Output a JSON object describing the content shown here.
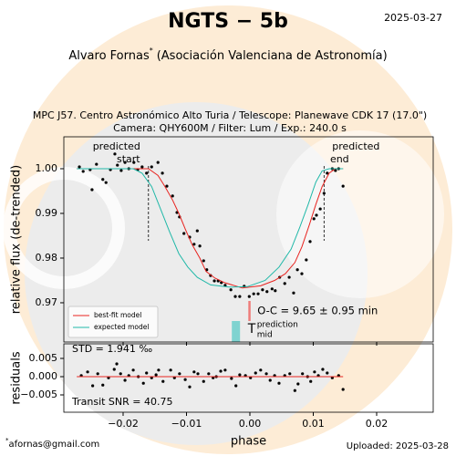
{
  "page": {
    "title": "NGTS − 5b",
    "date": "2025-03-27",
    "author": "Alvaro Fornas",
    "author_mark": "*",
    "affiliation": "(Asociación Valenciana de Astronomía)",
    "email": "afornas@gmail.com",
    "uploaded": "Uploaded: 2025-03-28"
  },
  "chart_data": [
    {
      "type": "scatter",
      "subtitle": [
        "MPC J57. Centro Astronómico Alto Turia / Telescope: Planewave CDK 17 (17.0\")",
        "Camera: QHY600M / Filter: Lum / Exp.: 240.0 s"
      ],
      "ylabel": "relative flux (de-trended)",
      "xlim": [
        -0.02935,
        0.02892
      ],
      "ylim": [
        0.96122,
        1.00714
      ],
      "yticks": [
        0.97,
        0.98,
        0.99,
        {
          "value": 1,
          "label": "1.00"
        }
      ],
      "legend": "lower left",
      "series": [
        {
          "mode": "markers",
          "color": "#000000",
          "x": [
            -0.0269,
            -0.0263,
            -0.0252,
            -0.0249,
            -0.0242,
            -0.0232,
            -0.0227,
            -0.022,
            -0.0213,
            -0.0209,
            -0.0203,
            -0.0197,
            -0.0191,
            -0.0183,
            -0.0177,
            -0.017,
            -0.0163,
            -0.0155,
            -0.0145,
            -0.0138,
            -0.0131,
            -0.0122,
            -0.0115,
            -0.0111,
            -0.0104,
            -0.0095,
            -0.0088,
            -0.0083,
            -0.0079,
            -0.0073,
            -0.0068,
            -0.0062,
            -0.0056,
            -0.005,
            -0.0045,
            -0.0039,
            -0.003,
            -0.0023,
            -0.0016,
            -0.0009,
            -0.0001,
            0.0006,
            0.0013,
            0.002,
            0.0027,
            0.0035,
            0.004,
            0.0047,
            0.0055,
            0.0062,
            0.0069,
            0.0075,
            0.0082,
            0.0089,
            0.0095,
            0.0101,
            0.0105,
            0.0111,
            0.0117,
            0.0122,
            0.013,
            0.0135,
            0.014,
            0.0147
          ],
          "values": [
            1.0004,
            0.9994,
            0.9998,
            0.9953,
            1.001,
            0.9976,
            0.9969,
            0.9998,
            1.0033,
            1.0008,
            0.9996,
            1.0014,
            1.0,
            1.0014,
            0.9998,
            1.0004,
            0.999,
            1.0004,
            1.0014,
            0.999,
            0.9961,
            0.9939,
            0.9902,
            0.9892,
            0.9855,
            0.9847,
            0.9831,
            0.9861,
            0.9827,
            0.9794,
            0.9774,
            0.9761,
            0.9749,
            0.9749,
            0.9745,
            0.9739,
            0.9729,
            0.9714,
            0.9714,
            0.9737,
            0.9714,
            0.972,
            0.972,
            0.9729,
            0.9725,
            0.9731,
            0.9727,
            0.9757,
            0.9743,
            0.9757,
            0.9722,
            0.9774,
            0.9765,
            0.9796,
            0.9837,
            0.9888,
            0.9896,
            0.991,
            0.9945,
            0.999,
            1.0,
            0.9996,
            1.0,
            0.9961
          ]
        },
        {
          "name": "best-fit model",
          "mode": "line",
          "color": "#e8231f",
          "x": [
            -0.0273,
            -0.016,
            -0.0145,
            -0.0134,
            -0.0122,
            -0.0112,
            -0.0102,
            -0.0091,
            -0.0079,
            -0.0069,
            -0.0055,
            -0.004,
            -0.0012,
            0.0017,
            0.0039,
            0.0056,
            0.0071,
            0.0082,
            0.0094,
            0.0104,
            0.0114,
            0.0125,
            0.0135,
            0.0147
          ],
          "values": [
            1.0,
            1.0,
            0.9985,
            0.996,
            0.993,
            0.99,
            0.9865,
            0.983,
            0.98,
            0.977,
            0.9755,
            0.9745,
            0.9733,
            0.9738,
            0.975,
            0.9765,
            0.979,
            0.9825,
            0.9875,
            0.992,
            0.996,
            0.999,
            1.0,
            1.0
          ]
        },
        {
          "name": "expected model",
          "mode": "line",
          "color": "#20b8a8",
          "x": [
            -0.0273,
            -0.0184,
            -0.017,
            -0.0155,
            -0.0141,
            -0.0127,
            -0.0112,
            -0.0098,
            -0.0083,
            -0.0062,
            -0.0033,
            -0.0004,
            0.0024,
            0.0046,
            0.0065,
            0.0079,
            0.0092,
            0.0104,
            0.0114,
            0.0125,
            0.0147
          ],
          "values": [
            1.0,
            1.0,
            0.999,
            0.996,
            0.991,
            0.986,
            0.981,
            0.978,
            0.9757,
            0.974,
            0.9735,
            0.9736,
            0.975,
            0.978,
            0.982,
            0.987,
            0.992,
            0.997,
            0.9995,
            1.0,
            1.0
          ]
        }
      ],
      "predicted_start": {
        "lines": [
          "predicted",
          "start"
        ],
        "x": -0.016
      },
      "predicted_end": {
        "lines": [
          "predicted",
          "end"
        ],
        "x": 0.0117
      },
      "prediction_mid": {
        "symbol": "T",
        "superscript": "prediction",
        "subscript": "mid",
        "x": -0.0022
      },
      "o_c": {
        "label": "O-C = 9.65 ± 0.95 min",
        "x": -0.0001
      }
    },
    {
      "type": "scatter",
      "xlabel": "phase",
      "ylabel": "residuals",
      "stats": [
        "STD = 1.941 ‰",
        "Transit SNR = 40.75"
      ],
      "xlim": [
        -0.02935,
        0.02892
      ],
      "ylim": [
        -0.00975,
        0.009
      ],
      "xticks": [
        {
          "value": -0.02,
          "label": "−0.02"
        },
        {
          "value": -0.01,
          "label": "−0.01"
        },
        {
          "value": 0,
          "label": "0.00"
        },
        0.01,
        0.02
      ],
      "yticks": [
        0.005,
        {
          "value": 0,
          "label": "0.000"
        },
        {
          "value": -0.005,
          "label": "−0.005"
        }
      ],
      "series": [
        {
          "mode": "markers",
          "color": "#000000",
          "x": [
            -0.0266,
            -0.0256,
            -0.0248,
            -0.024,
            -0.0232,
            -0.0223,
            -0.0214,
            -0.021,
            -0.0204,
            -0.0197,
            -0.0191,
            -0.0184,
            -0.0176,
            -0.0168,
            -0.0163,
            -0.0155,
            -0.0148,
            -0.0144,
            -0.0137,
            -0.0125,
            -0.0119,
            -0.0111,
            -0.0102,
            -0.0095,
            -0.0088,
            -0.0082,
            -0.0073,
            -0.0065,
            -0.0058,
            -0.0053,
            -0.0046,
            -0.0039,
            -0.0029,
            -0.0022,
            -0.0016,
            -0.0007,
            0.0001,
            0.0009,
            0.0017,
            0.0026,
            0.0032,
            0.0039,
            0.0046,
            0.0055,
            0.0063,
            0.0071,
            0.0076,
            0.0083,
            0.0091,
            0.0096,
            0.0102,
            0.0108,
            0.0115,
            0.0122,
            0.013,
            0.014,
            0.0147
          ],
          "values": [
            0.0003,
            0.0013,
            -0.0025,
            0.0008,
            -0.0023,
            -0.0003,
            0.002,
            0.0035,
            0.0008,
            -0.001,
            0.0003,
            0.0018,
            0,
            -0.0018,
            0.001,
            -0.0003,
            0.0005,
            0.0018,
            -0.0013,
            0.0018,
            -0.0003,
            0.0008,
            -0.0008,
            -0.0028,
            0.0013,
            0.0008,
            -0.0013,
            0.0008,
            -0.0003,
            0,
            0.0015,
            0.0018,
            -0.0005,
            -0.0025,
            0.0005,
            0.0003,
            -0.0003,
            0.001,
            0.0018,
            0.0008,
            -0.001,
            0.0003,
            -0.0018,
            0.0003,
            0.0008,
            -0.0038,
            -0.002,
            0.0008,
            0,
            -0.0013,
            0.0013,
            0.0003,
            0.002,
            0.001,
            -0.0003,
            0.0003,
            -0.0035
          ]
        },
        {
          "mode": "line",
          "color": "#e8231f",
          "x": [
            -0.0273,
            0.0147
          ],
          "values": [
            0,
            0
          ]
        }
      ]
    }
  ]
}
